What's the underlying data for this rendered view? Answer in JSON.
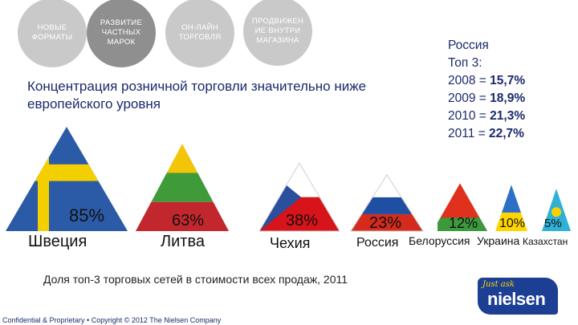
{
  "tabs": [
    {
      "label": "НОВЫЕ ФОРМАТЫ"
    },
    {
      "label": "РАЗВИТИЕ ЧАСТНЫХ МАРОК"
    },
    {
      "label": "ОН-ЛАЙН ТОРГОВЛЯ"
    },
    {
      "label": "ПРОДВИЖЕН ИЕ ВНУТРИ МАГАЗИНА"
    }
  ],
  "headline": "Концентрация розничной торговли значительно ниже европейского уровня",
  "russia_box": {
    "title": "Россия",
    "subtitle": "Топ 3:",
    "rows": [
      {
        "year": "2008 = ",
        "value": "15,7%"
      },
      {
        "year": "2009 = ",
        "value": "18,9%"
      },
      {
        "year": "2010 = ",
        "value": "21,3%"
      },
      {
        "year": "2011 = ",
        "value": "22,7%"
      }
    ]
  },
  "chart_data": {
    "type": "bar",
    "categories": [
      "Швеция",
      "Литва",
      "Чехия",
      "Россия",
      "Белоруссия",
      "Украина",
      "Казахстан"
    ],
    "values": [
      85,
      63,
      38,
      23,
      12,
      10,
      5
    ],
    "value_labels": [
      "85%",
      "63%",
      "38%",
      "23%",
      "12%",
      "10%",
      "5%"
    ],
    "title": "",
    "xlabel": "",
    "ylabel": ""
  },
  "footnote": "Доля топ-3 торговых сетей в стоимости всех продаж, 2011",
  "copyright": "Confidential & Proprietary • Copyright © 2012 The Nielsen Company",
  "logo": {
    "tagline": "Just ask",
    "word": "nielsen"
  },
  "colors": {
    "text_dark_blue": "#1a2a6c",
    "tab_gray": "#c9c9c9",
    "tab_active_gray": "#8f8f8f",
    "sweden_blue": "#2b5aa6",
    "sweden_yellow": "#f3cf00",
    "lithuania_yellow": "#f2c40a",
    "lithuania_green": "#3f9a3a",
    "lithuania_red": "#c1272d",
    "czech_blue": "#2a4f9c",
    "czech_red": "#d7141a",
    "russia_blue": "#1f4fa3",
    "russia_red": "#d52b1e",
    "belarus_red": "#e0301e",
    "belarus_green": "#3c9a3c",
    "ukraine_blue": "#2d6fc4",
    "ukraine_yellow": "#ffd500",
    "kazakhstan_blue": "#2fb0d6",
    "kazakhstan_sun": "#ffd000",
    "logo_blue": "#1c3f94"
  }
}
